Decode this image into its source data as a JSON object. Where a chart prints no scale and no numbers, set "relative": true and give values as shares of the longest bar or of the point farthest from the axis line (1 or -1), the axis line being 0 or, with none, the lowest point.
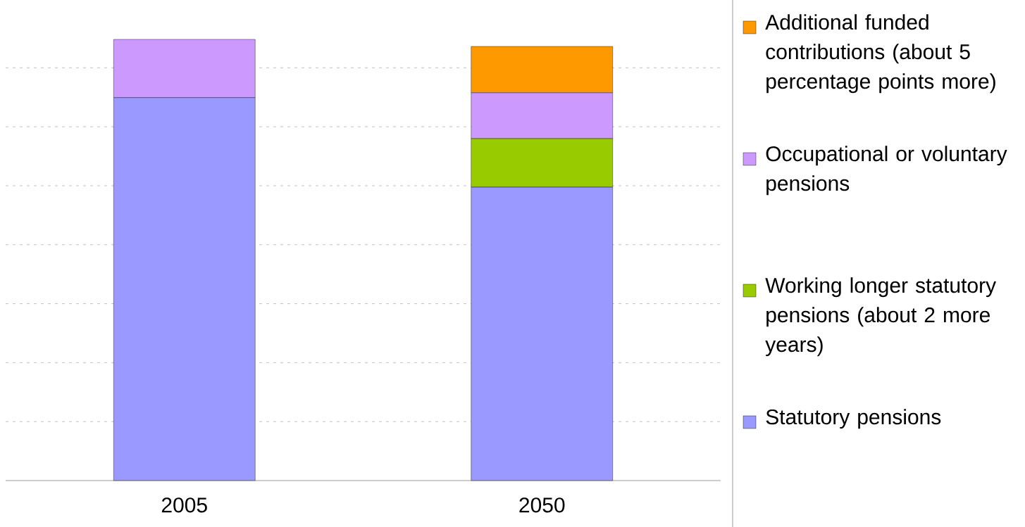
{
  "chart_data": {
    "type": "bar",
    "stacked": true,
    "relative": true,
    "grid": "y",
    "legend": "right",
    "categories": [
      "2005",
      "2050"
    ],
    "series": [
      {
        "name": "Statutory pensions",
        "color": "#9999ff",
        "values": [
          0.868,
          0.665
        ]
      },
      {
        "name": "Working longer statutory pensions (about 2 more years)",
        "color": "#99cc00",
        "values": [
          null,
          0.11
        ]
      },
      {
        "name": "Occupational or voluntary pensions",
        "color": "#cc99ff",
        "values": [
          0.132,
          0.104
        ]
      },
      {
        "name": "Additional funded contributions (about 5 percentage points more)",
        "color": "#ff9900",
        "values": [
          null,
          0.105
        ]
      }
    ]
  }
}
